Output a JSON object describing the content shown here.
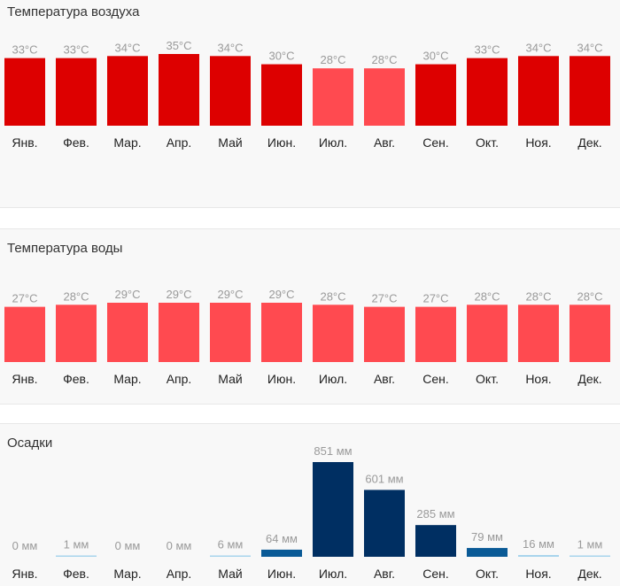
{
  "chart_data": [
    {
      "id": "air",
      "type": "bar",
      "title": "Температура воздуха",
      "categories": [
        "Янв.",
        "Фев.",
        "Мар.",
        "Апр.",
        "Май",
        "Июн.",
        "Июл.",
        "Авг.",
        "Сен.",
        "Окт.",
        "Ноя.",
        "Дек."
      ],
      "values": [
        33,
        33,
        34,
        35,
        34,
        30,
        28,
        28,
        30,
        33,
        34,
        34
      ],
      "labels": [
        "33°C",
        "33°C",
        "34°C",
        "35°C",
        "34°C",
        "30°C",
        "28°C",
        "28°C",
        "30°C",
        "33°C",
        "34°C",
        "34°C"
      ],
      "unit": "°C",
      "colors": [
        "#dd0000",
        "#dd0000",
        "#dd0000",
        "#dd0000",
        "#dd0000",
        "#dd0000",
        "#ff4a50",
        "#ff4a50",
        "#dd0000",
        "#dd0000",
        "#dd0000",
        "#dd0000"
      ],
      "ylim": [
        0,
        35
      ]
    },
    {
      "id": "water",
      "type": "bar",
      "title": "Температура воды",
      "categories": [
        "Янв.",
        "Фев.",
        "Мар.",
        "Апр.",
        "Май",
        "Июн.",
        "Июл.",
        "Авг.",
        "Сен.",
        "Окт.",
        "Ноя.",
        "Дек."
      ],
      "values": [
        27,
        28,
        29,
        29,
        29,
        29,
        28,
        27,
        27,
        28,
        28,
        28
      ],
      "labels": [
        "27°C",
        "28°C",
        "29°C",
        "29°C",
        "29°C",
        "29°C",
        "28°C",
        "27°C",
        "27°C",
        "28°C",
        "28°C",
        "28°C"
      ],
      "unit": "°C",
      "colors": [
        "#ff4a50",
        "#ff4a50",
        "#ff4a50",
        "#ff4a50",
        "#ff4a50",
        "#ff4a50",
        "#ff4a50",
        "#ff4a50",
        "#ff4a50",
        "#ff4a50",
        "#ff4a50",
        "#ff4a50"
      ],
      "ylim": [
        0,
        29
      ]
    },
    {
      "id": "rain",
      "type": "bar",
      "title": "Осадки",
      "categories": [
        "Янв.",
        "Фев.",
        "Мар.",
        "Апр.",
        "Май",
        "Июн.",
        "Июл.",
        "Авг.",
        "Сен.",
        "Окт.",
        "Ноя.",
        "Дек."
      ],
      "values": [
        0,
        1,
        0,
        0,
        6,
        64,
        851,
        601,
        285,
        79,
        16,
        1
      ],
      "labels": [
        "0 мм",
        "1 мм",
        "0 мм",
        "0 мм",
        "6 мм",
        "64 мм",
        "851 мм",
        "601 мм",
        "285 мм",
        "79 мм",
        "16 мм",
        "1 мм"
      ],
      "unit": "мм",
      "colors": [
        "#a8d4ec",
        "#a8d4ec",
        "#a8d4ec",
        "#a8d4ec",
        "#a8d4ec",
        "#0a5a96",
        "#002f62",
        "#002f62",
        "#002f62",
        "#0a5a96",
        "#a8d4ec",
        "#a8d4ec"
      ],
      "ylim": [
        0,
        851
      ]
    }
  ]
}
